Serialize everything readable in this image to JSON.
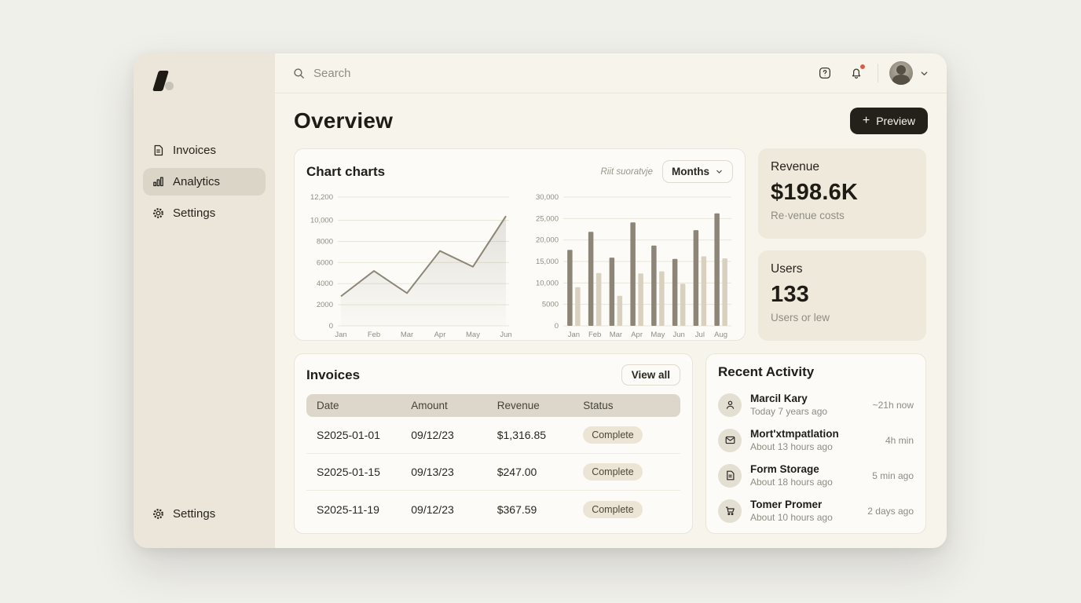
{
  "colors": {
    "desktop_bg": "#f0f0eb",
    "sidebar_bg": "#ebe6d9",
    "main_bg": "#f7f4ec",
    "card_bg": "#fcfbf7",
    "stat_card_bg": "#efe9dc",
    "accent_dark": "#24211b",
    "notification_red": "#dd5b46",
    "series_dark": "#8d8678",
    "series_light": "#d8d1bf"
  },
  "sidebar": {
    "logo": "logo-mark",
    "nav": [
      {
        "label": "Invoices",
        "icon": "invoice-icon",
        "active": false
      },
      {
        "label": "Analytics",
        "icon": "analytics-icon",
        "active": true
      },
      {
        "label": "Settings",
        "icon": "gear-icon",
        "active": false
      }
    ],
    "bottom": {
      "label": "Settings",
      "icon": "gear-icon"
    }
  },
  "header": {
    "search_placeholder": "Search",
    "icons": [
      "help-icon",
      "bell-icon",
      "avatar",
      "chevron-down-icon"
    ],
    "notification_dot": true
  },
  "page": {
    "title": "Overview",
    "preview_button": "Preview",
    "preview_plus": "+"
  },
  "chart_card": {
    "title": "Chart charts",
    "note": "Riit suoratvje",
    "period_button": "Months"
  },
  "chart_data": [
    {
      "type": "line",
      "title": "",
      "x": [
        "Jan",
        "Feb",
        "Mar",
        "Apr",
        "May",
        "Jun"
      ],
      "values": [
        2800,
        5200,
        3100,
        7100,
        5600,
        10400
      ],
      "ylim": [
        0,
        12200
      ],
      "yticks": [
        0,
        2000,
        4000,
        6000,
        8000,
        10000,
        12200
      ],
      "ytick_labels": [
        "0",
        "2000",
        "4000",
        "6000",
        "8000",
        "10,000",
        "12,200"
      ],
      "grid": true,
      "legend": false,
      "line_color": "#8d8678",
      "area_fill": "#8d8678"
    },
    {
      "type": "bar",
      "title": "",
      "categories": [
        "Jan",
        "Feb",
        "Mar",
        "Apr",
        "May",
        "Jun",
        "Jul",
        "Aug"
      ],
      "series": [
        {
          "name": "dark",
          "color": "#8d8678",
          "values": [
            17700,
            21900,
            15900,
            24100,
            18700,
            15600,
            22300,
            26200
          ]
        },
        {
          "name": "light",
          "color": "#d8d1bf",
          "values": [
            9000,
            12300,
            7000,
            12200,
            12700,
            9800,
            16200,
            15700
          ]
        }
      ],
      "ylim": [
        0,
        30000
      ],
      "yticks": [
        0,
        5000,
        10000,
        15000,
        20000,
        25000,
        30000
      ],
      "ytick_labels": [
        "0",
        "5000",
        "10,000",
        "15,000",
        "20,000",
        "25,000",
        "30,000"
      ],
      "grid": true,
      "legend": false
    }
  ],
  "stats": [
    {
      "title": "Revenue",
      "value": "$198.6K",
      "sub": "Re·venue costs"
    },
    {
      "title": "Users",
      "value": "133",
      "sub": "Users or lew"
    }
  ],
  "invoices": {
    "title": "Invoices",
    "view_all": "View all",
    "columns": [
      "Date",
      "Amount",
      "Revenue",
      "Status"
    ],
    "rows": [
      {
        "date": "S2025-01-01",
        "amount": "09/12/23",
        "revenue": "$1,316.85",
        "status": "Complete"
      },
      {
        "date": "S2025-01-15",
        "amount": "09/13/23",
        "revenue": "$247.00",
        "status": "Complete"
      },
      {
        "date": "S2025-11-19",
        "amount": "09/12/23",
        "revenue": "$367.59",
        "status": "Complete"
      }
    ]
  },
  "activity": {
    "title": "Recent Activity",
    "items": [
      {
        "icon": "user-icon",
        "name": "Marcil Kary",
        "detail": "Today 7 years ago",
        "time": "~21h now"
      },
      {
        "icon": "mail-icon",
        "name": "Mort'xtmpatlation",
        "detail": "About 13 hours ago",
        "time": "4h min"
      },
      {
        "icon": "file-icon",
        "name": "Form Storage",
        "detail": "About 18 hours ago",
        "time": "5 min ago"
      },
      {
        "icon": "cart-icon",
        "name": "Tomer Promer",
        "detail": "About 10 hours ago",
        "time": "2 days ago"
      }
    ]
  }
}
